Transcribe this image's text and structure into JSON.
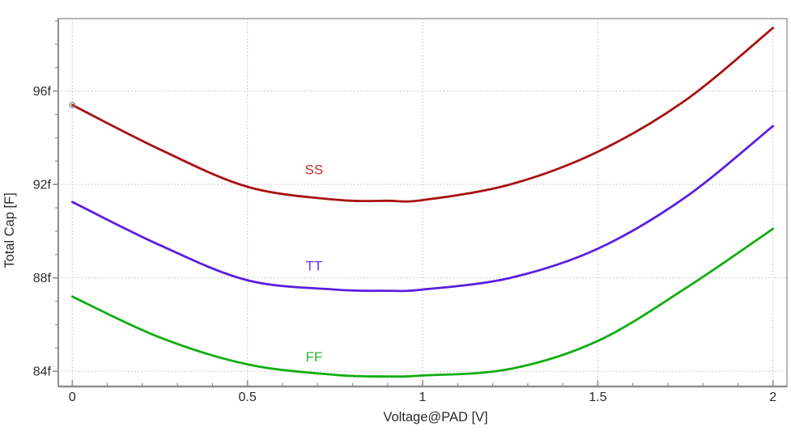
{
  "chart_data": {
    "type": "line",
    "title": "",
    "xlabel": "Voltage@PAD [V]",
    "ylabel": "Total Cap [F]",
    "x_unit": "V",
    "y_unit": "F (femtofarads, 'f' suffix)",
    "xlim": [
      -0.04,
      2.04
    ],
    "ylim": [
      83.35,
      99.1
    ],
    "grid": "dotted lines at major ticks, both axes",
    "legend_position": "inline labels beside each curve",
    "x_major_ticks": [
      0,
      0.5,
      1,
      1.5,
      2
    ],
    "x_tick_labels": [
      "0",
      "0.5",
      "1",
      "1.5",
      "2"
    ],
    "x_minor_step": 0.1,
    "y_major_ticks": [
      84,
      88,
      92,
      96
    ],
    "y_tick_labels": [
      "84f",
      "88f",
      "92f",
      "96f"
    ],
    "y_minor_step": 1,
    "x": [
      0,
      0.25,
      0.5,
      0.75,
      0.9,
      1.0,
      1.25,
      1.5,
      1.75,
      2.0
    ],
    "series": [
      {
        "name": "SS",
        "color": "#a81212",
        "label_color": "#cc2a2a",
        "label_at": [
          0.69,
          92.62
        ],
        "values": [
          95.4,
          93.5,
          91.9,
          91.35,
          91.3,
          91.33,
          92.0,
          93.4,
          95.6,
          98.7
        ],
        "start_marker": true
      },
      {
        "name": "TT",
        "color": "#5a1fe0",
        "label_color": "#6a2cf0",
        "label_at": [
          0.69,
          88.5
        ],
        "values": [
          91.25,
          89.4,
          87.9,
          87.5,
          87.45,
          87.5,
          88.0,
          89.25,
          91.45,
          94.5
        ],
        "start_marker": false
      },
      {
        "name": "FF",
        "color": "#12ad12",
        "label_color": "#2cb52c",
        "label_at": [
          0.69,
          84.62
        ],
        "values": [
          87.2,
          85.45,
          84.3,
          83.85,
          83.78,
          83.82,
          84.1,
          85.3,
          87.55,
          90.1
        ],
        "start_marker": false
      }
    ],
    "axis_color": "#8f8f8f",
    "grid_color": "#bcbcbc",
    "text_color": "#2b2b2b",
    "marker_color": "#8c8c8c",
    "background": "#ffffff"
  }
}
